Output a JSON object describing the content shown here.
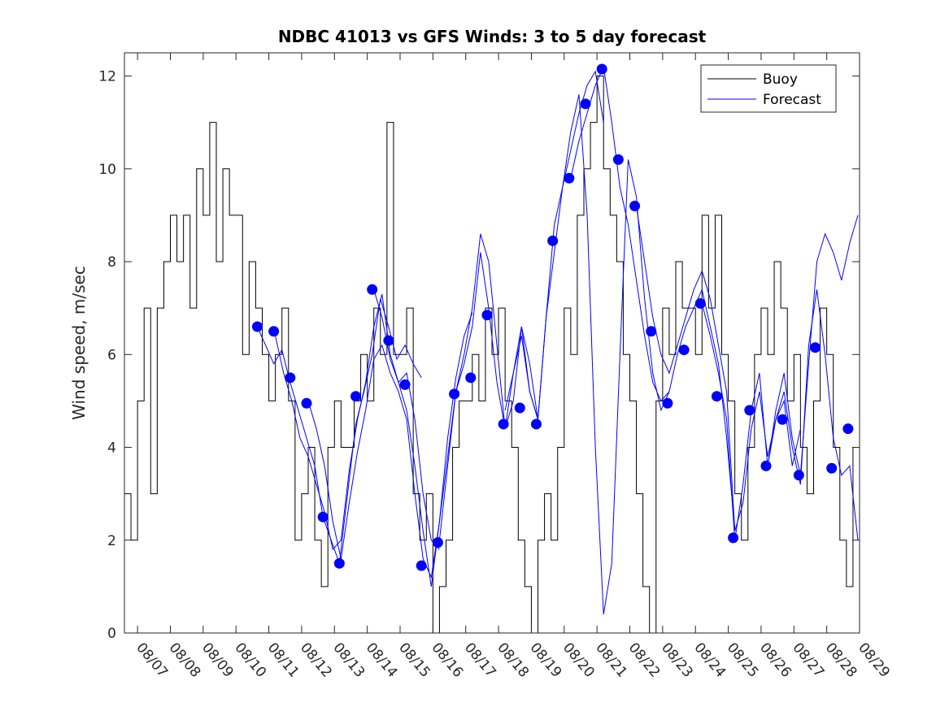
{
  "chart_data": {
    "type": "line",
    "title": "NDBC 41013 vs GFS Winds: 3 to 5 day forecast",
    "xlabel": "",
    "ylabel": "Wind speed, m/sec",
    "ylim": [
      0,
      12.5
    ],
    "yticks": [
      0,
      2,
      4,
      6,
      8,
      10,
      12
    ],
    "xlim_day": [
      6.6,
      29.0
    ],
    "x_tick_labels": [
      "08/07",
      "08/08",
      "08/09",
      "08/10",
      "08/11",
      "08/12",
      "08/13",
      "08/14",
      "08/15",
      "08/16",
      "08/17",
      "08/18",
      "08/19",
      "08/20",
      "08/21",
      "08/22",
      "08/23",
      "08/24",
      "08/25",
      "08/26",
      "08/27",
      "08/28",
      "08/29"
    ],
    "x_tick_days": [
      7,
      8,
      9,
      10,
      11,
      12,
      13,
      14,
      15,
      16,
      17,
      18,
      19,
      20,
      21,
      22,
      23,
      24,
      25,
      26,
      27,
      28,
      29
    ],
    "legend": {
      "position": "top-right",
      "entries": [
        "Buoy",
        "Forecast"
      ]
    },
    "colors": {
      "buoy": "#000000",
      "forecast": "#0000ff",
      "markers": "#0000ff"
    },
    "series": [
      {
        "name": "Buoy",
        "note": "approximate envelope (integer-valued m/s readings, hourly)",
        "x_day": [
          6.6,
          6.8,
          7.0,
          7.2,
          7.4,
          7.6,
          7.8,
          8.0,
          8.2,
          8.4,
          8.6,
          8.8,
          9.0,
          9.2,
          9.4,
          9.6,
          9.8,
          10.0,
          10.2,
          10.4,
          10.6,
          10.8,
          11.0,
          11.2,
          11.4,
          11.6,
          11.8,
          12.0,
          12.2,
          12.4,
          12.6,
          12.8,
          13.0,
          13.2,
          13.4,
          13.6,
          13.8,
          14.0,
          14.2,
          14.4,
          14.6,
          14.8,
          15.0,
          15.2,
          15.4,
          15.6,
          15.8,
          16.0,
          16.2,
          16.4,
          16.6,
          16.8,
          17.0,
          17.2,
          17.4,
          17.6,
          17.8,
          18.0,
          18.2,
          18.4,
          18.6,
          18.8,
          19.0,
          19.2,
          19.4,
          19.6,
          19.8,
          20.0,
          20.2,
          20.4,
          20.6,
          20.8,
          21.0,
          21.2,
          21.4,
          21.6,
          21.8,
          22.0,
          22.2,
          22.4,
          22.6,
          22.8,
          23.0,
          23.2,
          23.4,
          23.6,
          23.8,
          24.0,
          24.2,
          24.4,
          24.6,
          24.8,
          25.0,
          25.2,
          25.4,
          25.6,
          25.8,
          26.0,
          26.2,
          26.4,
          26.6,
          26.8,
          27.0,
          27.2,
          27.4,
          27.6,
          27.8,
          28.0,
          28.2,
          28.4,
          28.6,
          28.8,
          29.0
        ],
        "y": [
          3,
          2,
          5,
          7,
          3,
          7,
          8,
          9,
          8,
          9,
          7,
          10,
          9,
          11,
          8,
          10,
          9,
          9,
          6,
          8,
          7,
          6,
          5,
          6,
          7,
          5,
          2,
          3,
          4,
          2,
          1,
          4,
          5,
          4,
          4,
          5,
          6,
          5,
          7,
          6,
          11,
          6,
          6,
          7,
          3,
          2,
          3,
          0,
          1,
          2,
          4,
          5,
          5,
          6,
          5,
          7,
          6,
          7,
          5,
          4,
          2,
          1,
          0,
          2,
          3,
          2,
          4,
          7,
          6,
          9,
          10,
          11,
          12,
          10,
          9,
          8,
          6,
          5,
          3,
          1,
          0,
          5,
          7,
          6,
          8,
          7,
          7,
          6,
          9,
          7,
          9,
          6,
          5,
          3,
          2,
          4,
          6,
          7,
          6,
          8,
          7,
          5,
          6,
          4,
          3,
          5,
          7,
          6,
          4,
          2,
          1,
          4,
          3
        ]
      },
      {
        "name": "Forecast",
        "note": "3-5 day forecast traces (approximate, 3-hourly); markers are daily averages",
        "traces": [
          {
            "x_day": [
              10.65,
              10.9,
              11.15,
              11.4,
              11.65,
              11.9,
              12.15,
              12.4,
              12.65,
              12.9,
              13.15,
              13.4,
              13.65,
              13.9,
              14.15,
              14.4,
              14.65,
              14.9,
              15.15,
              15.4,
              15.65
            ],
            "y": [
              6.6,
              6.2,
              5.8,
              6.1,
              5.4,
              4.8,
              4.2,
              3.6,
              2.5,
              2.0,
              1.5,
              3.0,
              4.5,
              5.2,
              6.0,
              7.2,
              6.6,
              5.9,
              6.2,
              5.8,
              5.5
            ]
          },
          {
            "x_day": [
              11.2,
              11.45,
              11.7,
              11.95,
              12.2,
              12.45,
              12.7,
              12.95,
              13.2,
              13.45,
              13.7,
              13.95,
              14.2,
              14.45,
              14.7,
              14.95,
              15.2,
              15.45,
              15.7,
              15.95,
              16.2
            ],
            "y": [
              6.4,
              5.6,
              5.0,
              4.2,
              3.8,
              3.2,
              2.6,
              1.8,
              2.0,
              3.5,
              4.6,
              5.4,
              6.6,
              7.3,
              6.0,
              5.4,
              5.6,
              4.6,
              3.0,
              2.0,
              1.8
            ]
          },
          {
            "x_day": [
              12.2,
              12.45,
              12.7,
              12.95,
              13.2,
              13.45,
              13.7,
              13.95,
              14.2,
              14.45,
              14.7,
              14.95,
              15.2,
              15.45,
              15.7,
              15.95,
              16.2,
              16.45,
              16.7,
              16.95,
              17.2
            ],
            "y": [
              5.0,
              4.4,
              3.6,
              2.4,
              1.6,
              2.8,
              3.9,
              4.8,
              5.9,
              6.2,
              5.6,
              5.2,
              4.6,
              3.0,
              1.6,
              1.2,
              2.4,
              4.2,
              5.5,
              6.4,
              6.9
            ]
          },
          {
            "x_day": [
              14.2,
              14.45,
              14.7,
              14.95,
              15.2,
              15.45,
              15.7,
              15.95,
              16.2,
              16.45,
              16.7,
              16.95,
              17.2,
              17.45,
              17.7,
              17.95,
              18.2,
              18.45,
              18.7,
              18.95,
              19.2
            ],
            "y": [
              7.4,
              6.8,
              5.9,
              5.4,
              4.8,
              3.6,
              2.2,
              1.0,
              2.4,
              3.8,
              5.2,
              6.0,
              7.0,
              8.6,
              8.0,
              6.2,
              4.4,
              5.0,
              6.6,
              5.2,
              4.6
            ]
          },
          {
            "x_day": [
              16.2,
              16.45,
              16.7,
              16.95,
              17.2,
              17.45,
              17.7,
              17.95,
              18.2,
              18.45,
              18.7,
              18.95,
              19.2,
              19.45,
              19.7,
              19.95,
              20.2,
              20.45,
              20.7,
              20.95,
              21.2
            ],
            "y": [
              2.0,
              3.6,
              5.2,
              5.8,
              6.6,
              8.2,
              7.0,
              5.4,
              4.4,
              5.6,
              6.6,
              5.8,
              4.6,
              6.8,
              8.8,
              9.6,
              10.4,
              11.2,
              11.8,
              12.1,
              11.0
            ]
          },
          {
            "x_day": [
              18.2,
              18.45,
              18.7,
              18.95,
              19.2,
              19.45,
              19.7,
              19.95,
              20.2,
              20.45,
              20.7,
              20.95,
              21.2,
              21.45,
              21.7,
              21.95,
              22.2,
              22.45,
              22.7,
              22.95,
              23.2
            ],
            "y": [
              4.8,
              5.6,
              6.4,
              5.2,
              4.6,
              6.8,
              8.2,
              9.6,
              10.8,
              11.6,
              9.0,
              4.0,
              0.4,
              1.5,
              6.0,
              10.2,
              9.4,
              7.2,
              5.6,
              4.8,
              5.2
            ]
          },
          {
            "x_day": [
              20.2,
              20.45,
              20.7,
              20.95,
              21.2,
              21.45,
              21.7,
              21.95,
              22.2,
              22.45,
              22.7,
              22.95,
              23.2,
              23.45,
              23.7,
              23.95,
              24.2,
              24.45,
              24.7,
              24.95,
              25.2
            ],
            "y": [
              9.8,
              10.6,
              11.2,
              11.8,
              12.2,
              11.0,
              9.6,
              8.8,
              7.6,
              6.4,
              5.4,
              5.0,
              5.2,
              6.0,
              6.6,
              7.0,
              7.4,
              6.6,
              5.8,
              4.2,
              2.2
            ]
          },
          {
            "x_day": [
              22.2,
              22.45,
              22.7,
              22.95,
              23.2,
              23.45,
              23.7,
              23.95,
              24.2,
              24.45,
              24.7,
              24.95,
              25.2,
              25.45,
              25.7,
              25.95,
              26.2,
              26.45,
              26.7,
              26.95,
              27.2
            ],
            "y": [
              9.2,
              8.0,
              6.8,
              6.0,
              5.6,
              6.2,
              6.8,
              7.4,
              7.8,
              7.2,
              6.2,
              5.2,
              2.2,
              2.8,
              4.4,
              5.2,
              3.8,
              4.6,
              5.0,
              3.6,
              4.4
            ]
          },
          {
            "x_day": [
              24.2,
              24.45,
              24.7,
              24.95,
              25.2,
              25.45,
              25.7,
              25.95,
              26.2,
              26.45,
              26.7,
              26.95,
              27.2,
              27.45,
              27.7,
              27.95,
              28.2,
              28.45,
              28.7,
              28.95
            ],
            "y": [
              7.1,
              6.4,
              5.6,
              4.6,
              2.0,
              3.2,
              4.8,
              5.6,
              3.6,
              4.8,
              5.6,
              4.2,
              3.4,
              5.8,
              8.0,
              8.6,
              8.2,
              7.6,
              8.4,
              9.0
            ]
          },
          {
            "x_day": [
              26.2,
              26.45,
              26.7,
              26.95,
              27.2,
              27.45,
              27.7,
              27.95,
              28.2,
              28.45,
              28.7,
              28.95
            ],
            "y": [
              3.6,
              4.6,
              5.2,
              4.0,
              3.2,
              6.2,
              7.4,
              6.0,
              4.2,
              3.4,
              3.6,
              2.0
            ]
          }
        ],
        "markers": {
          "x_day": [
            10.65,
            11.15,
            11.65,
            12.15,
            12.65,
            13.15,
            13.65,
            14.15,
            14.65,
            15.15,
            15.65,
            16.15,
            16.65,
            17.15,
            17.65,
            18.15,
            18.65,
            19.15,
            19.65,
            20.15,
            20.65,
            21.15,
            21.65,
            22.15,
            22.65,
            23.15,
            23.65,
            24.15,
            24.65,
            25.15,
            25.65,
            26.15,
            26.65,
            27.15,
            27.65,
            28.15,
            28.65
          ],
          "y": [
            6.6,
            6.5,
            5.5,
            4.95,
            2.5,
            1.5,
            5.1,
            7.4,
            6.3,
            5.35,
            1.45,
            1.95,
            5.15,
            5.5,
            6.85,
            4.5,
            4.85,
            4.5,
            8.45,
            9.8,
            11.4,
            12.15,
            10.2,
            9.2,
            6.5,
            4.95,
            6.1,
            7.1,
            5.1,
            2.05,
            4.8,
            3.6,
            4.6,
            3.4,
            6.15,
            3.55,
            4.4
          ]
        }
      }
    ]
  }
}
